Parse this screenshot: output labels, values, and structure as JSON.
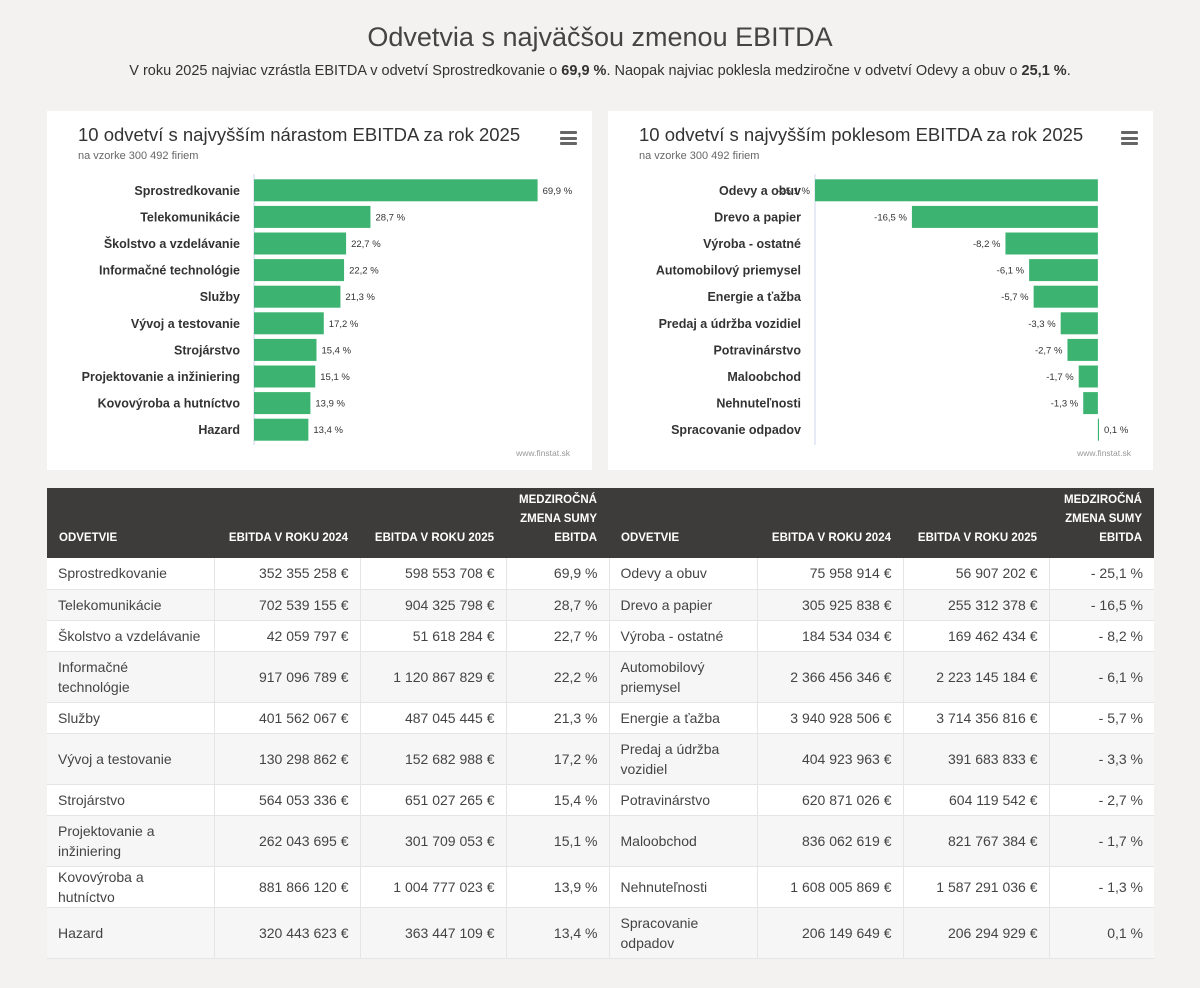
{
  "header": {
    "title": "Odvetvia s najväčšou zmenou EBITDA",
    "subtitle_part1": "V roku 2025 najviac vzrástla EBITDA v odvetví Sprostredkovanie o ",
    "subtitle_bold1": "69,9 %",
    "subtitle_part2": ". Naopak najviac poklesla medziročne v odvetví Odevy a obuv o ",
    "subtitle_bold2": "25,1 %",
    "subtitle_part3": "."
  },
  "colors": {
    "bar": "#3cb371",
    "header_bg": "#3e3c3a",
    "page_bg": "#f3f2f0"
  },
  "chart_data": [
    {
      "type": "bar",
      "orientation": "horizontal",
      "title": "10 odvetví s najvyšším nárastom EBITDA za rok 2025",
      "subtitle": "na vzorke 300 492 firiem",
      "credit": "www.finstat.sk",
      "categories": [
        "Sprostredkovanie",
        "Telekomunikácie",
        "Školstvo a vzdelávanie",
        "Informačné technológie",
        "Služby",
        "Vývoj a testovanie",
        "Strojárstvo",
        "Projektovanie a inžiniering",
        "Kovovýroba a hutníctvo",
        "Hazard"
      ],
      "values": [
        69.9,
        28.7,
        22.7,
        22.2,
        21.3,
        17.2,
        15.4,
        15.1,
        13.9,
        13.4
      ],
      "labels": [
        "69,9 %",
        "28,7 %",
        "22,7 %",
        "22,2 %",
        "21,3 %",
        "17,2 %",
        "15,4 %",
        "15,1 %",
        "13,9 %",
        "13,4 %"
      ],
      "xlim": [
        0,
        70
      ]
    },
    {
      "type": "bar",
      "orientation": "horizontal",
      "title": "10 odvetví s najvyšším poklesom EBITDA za rok 2025",
      "subtitle": "na vzorke 300 492 firiem",
      "credit": "www.finstat.sk",
      "categories": [
        "Odevy a obuv",
        "Drevo a papier",
        "Výroba - ostatné",
        "Automobilový priemysel",
        "Energie a ťažba",
        "Predaj a údržba vozidiel",
        "Potravinárstvo",
        "Maloobchod",
        "Nehnuteľnosti",
        "Spracovanie odpadov"
      ],
      "values": [
        -25.1,
        -16.5,
        -8.2,
        -6.1,
        -5.7,
        -3.3,
        -2.7,
        -1.7,
        -1.3,
        0.1
      ],
      "labels": [
        "-25,1 %",
        "-16,5 %",
        "-8,2 %",
        "-6,1 %",
        "-5,7 %",
        "-3,3 %",
        "-2,7 %",
        "-1,7 %",
        "-1,3 %",
        "0,1 %"
      ],
      "xlim": [
        -25.1,
        0.1
      ]
    }
  ],
  "table": {
    "headers": [
      "Odvetvie",
      "EBITDA v roku 2024",
      "EBITDA v roku 2025",
      "Medziročná zmena sumy EBITDA",
      "Odvetvie",
      "EBITDA v roku 2024",
      "EBITDA v roku 2025",
      "Medziročná zmena sumy EBITDA"
    ],
    "rows": [
      [
        "Sprostredkovanie",
        "352 355 258 €",
        "598 553 708 €",
        "69,9 %",
        "Odevy a obuv",
        "75 958 914 €",
        "56 907 202 €",
        "- 25,1 %"
      ],
      [
        "Telekomunikácie",
        "702 539 155 €",
        "904 325 798 €",
        "28,7 %",
        "Drevo a papier",
        "305 925 838 €",
        "255 312 378 €",
        "- 16,5 %"
      ],
      [
        "Školstvo a vzdelávanie",
        "42 059 797 €",
        "51 618 284 €",
        "22,7 %",
        "Výroba - ostatné",
        "184 534 034 €",
        "169 462 434 €",
        "- 8,2 %"
      ],
      [
        "Informačné technológie",
        "917 096 789 €",
        "1 120 867 829 €",
        "22,2 %",
        "Automobilový priemysel",
        "2 366 456 346 €",
        "2 223 145 184 €",
        "- 6,1 %"
      ],
      [
        "Služby",
        "401 562 067 €",
        "487 045 445 €",
        "21,3 %",
        "Energie a ťažba",
        "3 940 928 506 €",
        "3 714 356 816 €",
        "- 5,7 %"
      ],
      [
        "Vývoj a testovanie",
        "130 298 862 €",
        "152 682 988 €",
        "17,2 %",
        "Predaj a údržba vozidiel",
        "404 923 963 €",
        "391 683 833 €",
        "- 3,3 %"
      ],
      [
        "Strojárstvo",
        "564 053 336 €",
        "651 027 265 €",
        "15,4 %",
        "Potravinárstvo",
        "620 871 026 €",
        "604 119 542 €",
        "- 2,7 %"
      ],
      [
        "Projektovanie a inžiniering",
        "262 043 695 €",
        "301 709 053 €",
        "15,1 %",
        "Maloobchod",
        "836 062 619 €",
        "821 767 384 €",
        "- 1,7 %"
      ],
      [
        "Kovovýroba a hutníctvo",
        "881 866 120 €",
        "1 004 777 023 €",
        "13,9 %",
        "Nehnuteľnosti",
        "1 608 005 869 €",
        "1 587 291 036 €",
        "- 1,3 %"
      ],
      [
        "Hazard",
        "320 443 623 €",
        "363 447 109 €",
        "13,4 %",
        "Spracovanie odpadov",
        "206 149 649 €",
        "206 294 929 €",
        "0,1 %"
      ]
    ]
  }
}
